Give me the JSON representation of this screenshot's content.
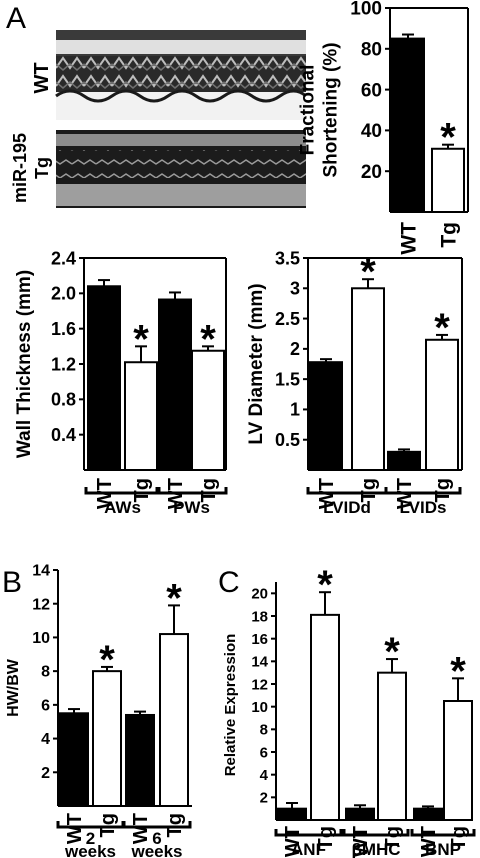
{
  "panels": {
    "a": "A",
    "b": "B",
    "c": "C"
  },
  "echo": {
    "wt_label": "WT",
    "tg_label_line1": "miR-195",
    "tg_label_line2": "Tg"
  },
  "colors": {
    "wt_fill": "#000000",
    "tg_fill": "#ffffff",
    "axis": "#000000"
  },
  "chart_data": [
    {
      "id": "fs",
      "type": "bar",
      "ylabel": "Fractional Shortening (%)",
      "ylabel_lines": [
        "Fractional",
        "Shortening (%)"
      ],
      "ylim": [
        0,
        100
      ],
      "yticks": [
        20,
        40,
        60,
        80,
        100
      ],
      "categories": [
        "WT",
        "Tg"
      ],
      "values": [
        85,
        31
      ],
      "errors": [
        2,
        2
      ],
      "significant": [
        false,
        true
      ],
      "groups": []
    },
    {
      "id": "wall",
      "type": "bar",
      "ylabel": "Wall Thickness (mm)",
      "ylim": [
        0,
        2.4
      ],
      "yticks": [
        "0.4",
        "0.8",
        "1.2",
        "1.6",
        "2.0",
        "2.4"
      ],
      "categories": [
        "WT",
        "Tg",
        "WT",
        "Tg"
      ],
      "values": [
        2.08,
        1.22,
        1.93,
        1.35
      ],
      "errors": [
        0.07,
        0.18,
        0.08,
        0.05
      ],
      "significant": [
        false,
        true,
        false,
        true
      ],
      "groups": [
        "AWs",
        "PWs"
      ]
    },
    {
      "id": "lv",
      "type": "bar",
      "ylabel": "LV Diameter (mm)",
      "ylim": [
        0,
        3.5
      ],
      "yticks": [
        "0.5",
        "1",
        "1.5",
        "2",
        "2.5",
        "3",
        "3.5"
      ],
      "categories": [
        "WT",
        "Tg",
        "WT",
        "Tg"
      ],
      "values": [
        1.78,
        3.0,
        0.3,
        2.15
      ],
      "errors": [
        0.05,
        0.15,
        0.04,
        0.08
      ],
      "significant": [
        false,
        true,
        false,
        true
      ],
      "groups": [
        "LVIDd",
        "LVIDs"
      ]
    },
    {
      "id": "hwbw",
      "type": "bar",
      "ylabel": "HW/BW",
      "ylim": [
        0,
        14
      ],
      "yticks": [
        2,
        4,
        6,
        8,
        10,
        12,
        14
      ],
      "categories": [
        "WT",
        "Tg",
        "WT",
        "Tg"
      ],
      "values": [
        5.5,
        8.0,
        5.4,
        10.2
      ],
      "errors": [
        0.25,
        0.25,
        0.2,
        1.7
      ],
      "significant": [
        false,
        true,
        false,
        true
      ],
      "groups": [
        "2 weeks",
        "6 weeks"
      ]
    },
    {
      "id": "expr",
      "type": "bar",
      "ylabel": "Relative Expression",
      "ylim": [
        0,
        21
      ],
      "yticks": [
        2,
        4,
        6,
        8,
        10,
        12,
        14,
        16,
        18,
        20
      ],
      "categories": [
        "WT",
        "Tg",
        "WT",
        "Tg",
        "WT",
        "Tg"
      ],
      "values": [
        1.0,
        18.1,
        1.0,
        13.0,
        1.0,
        10.5
      ],
      "errors": [
        0.5,
        2.0,
        0.3,
        1.2,
        0.2,
        2.0
      ],
      "significant": [
        false,
        true,
        false,
        true,
        false,
        true
      ],
      "groups": [
        "ANF",
        "βMHC",
        "BNP"
      ]
    }
  ]
}
